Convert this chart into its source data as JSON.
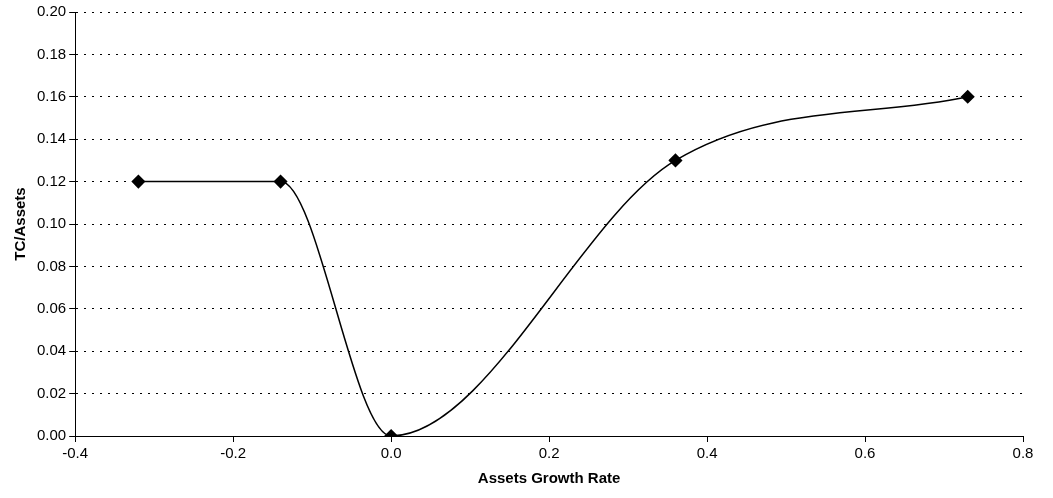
{
  "chart_data": {
    "type": "line",
    "xlabel": "Assets Growth Rate",
    "ylabel": "TC/Assets",
    "x": [
      -0.32,
      -0.14,
      0.0,
      0.36,
      0.73
    ],
    "series": [
      {
        "color": "#000000",
        "values": [
          0.12,
          0.12,
          0.0,
          0.13,
          0.16
        ]
      }
    ],
    "xlim": [
      -0.4,
      0.8
    ],
    "xticks": [
      -0.4,
      -0.2,
      {
        "value": 0,
        "label": "0.0"
      },
      0.2,
      0.4,
      0.6,
      0.8
    ],
    "ylim": [
      0,
      0.2
    ],
    "yticks": [
      {
        "value": 0,
        "label": "0.00"
      },
      {
        "value": 0.02,
        "label": "0.02"
      },
      {
        "value": 0.04,
        "label": "0.04"
      },
      {
        "value": 0.06,
        "label": "0.06"
      },
      {
        "value": 0.08,
        "label": "0.08"
      },
      {
        "value": 0.1,
        "label": "0.10"
      },
      {
        "value": 0.12,
        "label": "0.12"
      },
      {
        "value": 0.14,
        "label": "0.14"
      },
      {
        "value": 0.16,
        "label": "0.16"
      },
      {
        "value": 0.18,
        "label": "0.18"
      },
      {
        "value": 0.2,
        "label": "0.20"
      }
    ],
    "grid": "y",
    "legend": false,
    "marker": "diamond",
    "line_style": "solid"
  }
}
